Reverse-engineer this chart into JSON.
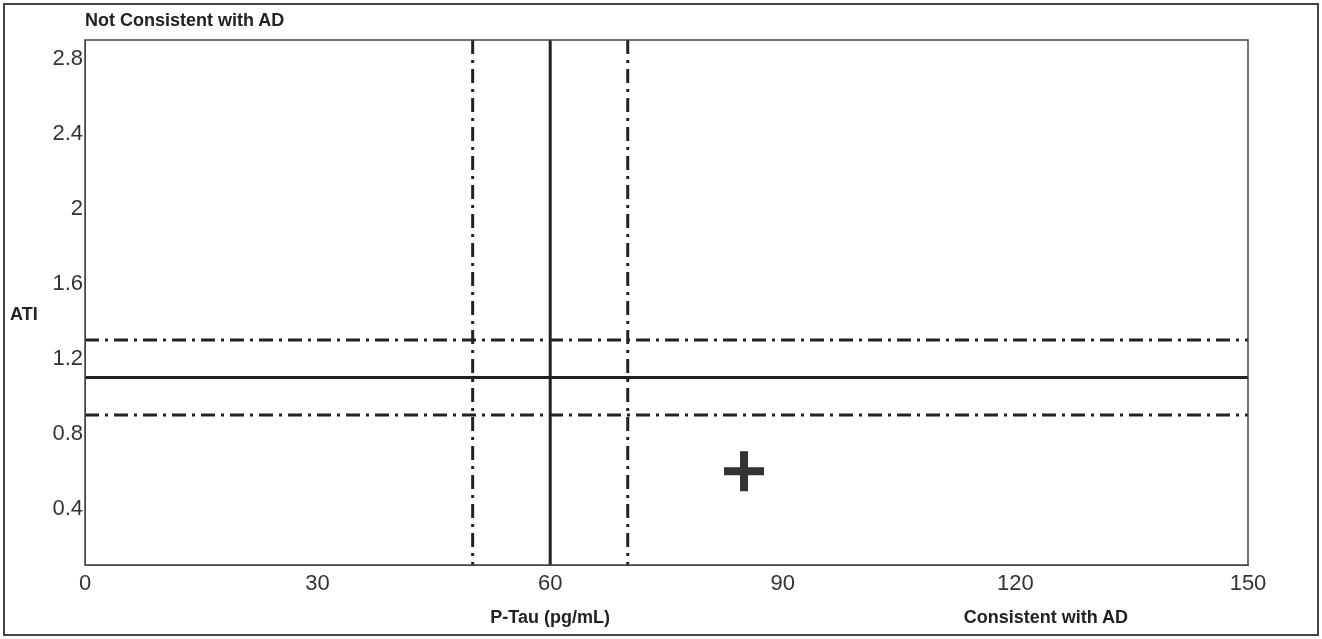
{
  "chart_data": {
    "type": "scatter",
    "xlabel": "P-Tau (pg/mL)",
    "ylabel": "ATI",
    "annotations": [
      "Not Consistent with AD",
      "Consistent with AD"
    ],
    "xlim": [
      0,
      150
    ],
    "xticks": [
      0,
      30,
      60,
      90,
      120,
      150
    ],
    "ylim": [
      0.1,
      2.9
    ],
    "yticks": [
      0.4,
      0.8,
      1.2,
      1.6,
      2,
      2.4,
      2.8
    ],
    "grid": false,
    "legend": false,
    "marker": "cross",
    "series": [
      {
        "color": "#333333",
        "x": [
          85
        ],
        "values": [
          0.6
        ]
      }
    ],
    "ref_lines": [
      {
        "axis": "x",
        "value": 50,
        "color": "#222222",
        "line_style": "dashed"
      },
      {
        "axis": "x",
        "value": 60,
        "color": "#222222",
        "line_style": "solid"
      },
      {
        "axis": "x",
        "value": 70,
        "color": "#222222",
        "line_style": "dashed"
      },
      {
        "axis": "y",
        "value": 0.9,
        "color": "#222222",
        "line_style": "dashed"
      },
      {
        "axis": "y",
        "value": 1.1,
        "color": "#222222",
        "line_style": "solid"
      },
      {
        "axis": "y",
        "value": 1.3,
        "color": "#222222",
        "line_style": "dashed"
      }
    ]
  }
}
